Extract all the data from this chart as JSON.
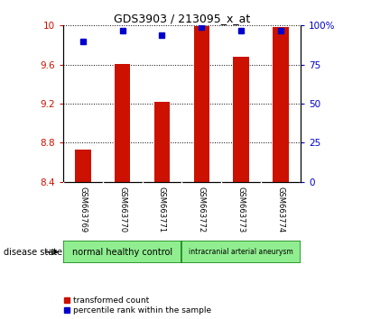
{
  "title": "GDS3903 / 213095_x_at",
  "samples": [
    "GSM663769",
    "GSM663770",
    "GSM663771",
    "GSM663772",
    "GSM663773",
    "GSM663774"
  ],
  "red_values": [
    8.73,
    9.61,
    9.22,
    9.99,
    9.68,
    9.98
  ],
  "blue_values": [
    90,
    97,
    94,
    99,
    97,
    97
  ],
  "ylim_left": [
    8.4,
    10.0
  ],
  "ylim_right": [
    0,
    100
  ],
  "yticks_left": [
    8.4,
    8.8,
    9.2,
    9.6,
    10.0
  ],
  "yticks_right": [
    0,
    25,
    50,
    75,
    100
  ],
  "ytick_labels_left": [
    "8.4",
    "8.8",
    "9.2",
    "9.6",
    "10"
  ],
  "ytick_labels_right": [
    "0",
    "25",
    "50",
    "75",
    "100%"
  ],
  "groups": [
    {
      "label": "normal healthy control",
      "color": "#90EE90",
      "start": 0,
      "end": 3
    },
    {
      "label": "intracranial arterial aneurysm",
      "color": "#90EE90",
      "start": 3,
      "end": 6
    }
  ],
  "group_border_color": "#228B22",
  "bar_color": "#CC1100",
  "dot_color": "#0000CC",
  "bar_bottom": 8.4,
  "disease_state_label": "disease state",
  "legend_red_label": "transformed count",
  "legend_blue_label": "percentile rank within the sample",
  "background_color": "#ffffff",
  "plot_bg_color": "#ffffff",
  "xlab_bg_color": "#d3d3d3",
  "tick_color_left": "#CC1100",
  "tick_color_right": "#0000CC",
  "bar_width": 0.4
}
